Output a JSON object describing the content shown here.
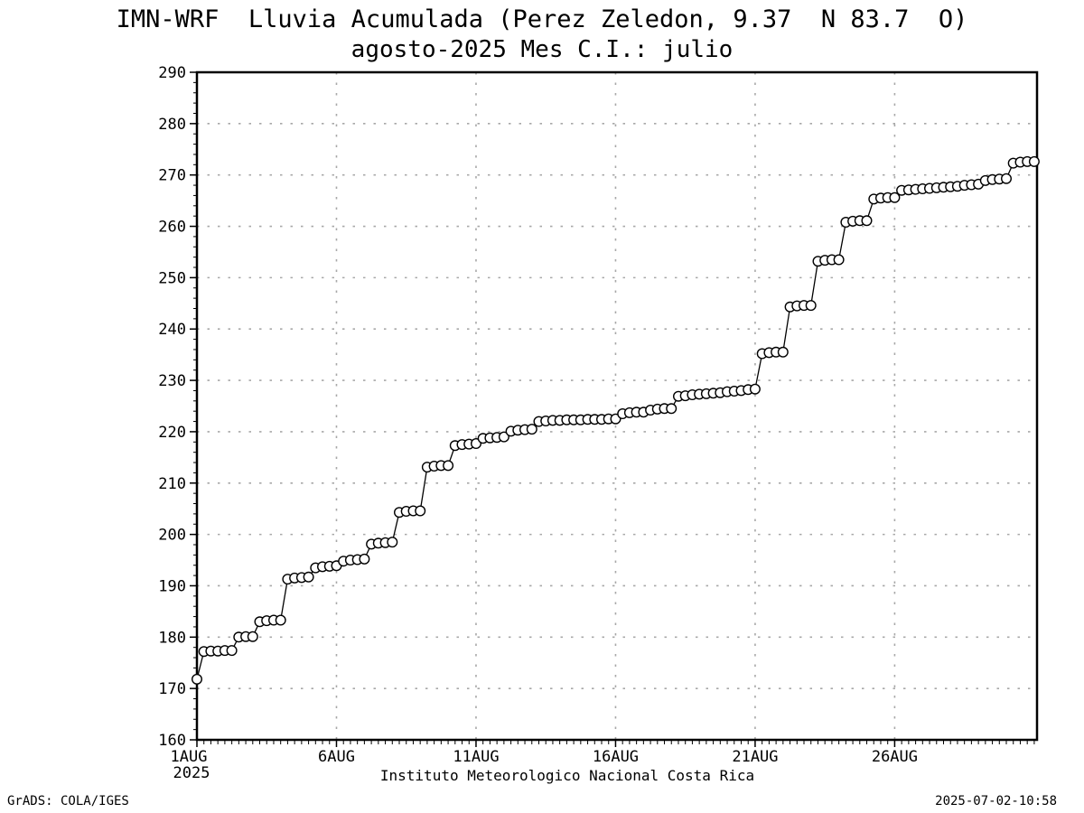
{
  "header": {
    "title_line1": "IMN-WRF  Lluvia Acumulada (Perez Zeledon, 9.37  N 83.7  O)",
    "title_line2": "agosto-2025 Mes C.I.: julio"
  },
  "footer": {
    "xaxis_title": "Instituto Meteorologico Nacional Costa Rica",
    "credit_left": "GrADS: COLA/IGES",
    "credit_right": "2025-07-02-10:58"
  },
  "colors": {
    "background": "#ffffff",
    "frame": "#000000",
    "gridline": "#a8a8a8",
    "line": "#000000",
    "marker_fill": "#ffffff",
    "marker_stroke": "#000000"
  },
  "chart_data": {
    "type": "line",
    "title": "IMN-WRF  Lluvia Acumulada (Perez Zeledon, 9.37  N 83.7  O)",
    "subtitle": "agosto-2025 Mes C.I.: julio",
    "xlabel": "Instituto Meteorologico Nacional Costa Rica",
    "ylabel": "",
    "xlim": [
      1.0,
      31.1
    ],
    "ylim": [
      160,
      290
    ],
    "y_tick_step": 10,
    "y_minor_step": 2,
    "x_minor_step": 0.25,
    "grid": "dotted",
    "legend": "none",
    "marker": "open-circle",
    "x_unit": "day of August 2025 (6-hourly)",
    "y_ticks": [
      160,
      170,
      180,
      190,
      200,
      210,
      220,
      230,
      240,
      250,
      260,
      270,
      280,
      290
    ],
    "x_ticks": [
      {
        "day": 1,
        "label": "1AUG",
        "sublabel": "2025"
      },
      {
        "day": 6,
        "label": "6AUG"
      },
      {
        "day": 11,
        "label": "11AUG"
      },
      {
        "day": 16,
        "label": "16AUG"
      },
      {
        "day": 21,
        "label": "21AUG"
      },
      {
        "day": 26,
        "label": "26AUG"
      }
    ],
    "series": [
      {
        "name": "Lluvia acumulada (mm)",
        "points": [
          [
            1.0,
            171.8
          ],
          [
            1.25,
            177.2
          ],
          [
            1.5,
            177.3
          ],
          [
            1.75,
            177.3
          ],
          [
            2.0,
            177.4
          ],
          [
            2.25,
            177.4
          ],
          [
            2.5,
            180.0
          ],
          [
            2.75,
            180.1
          ],
          [
            3.0,
            180.1
          ],
          [
            3.25,
            183.0
          ],
          [
            3.5,
            183.2
          ],
          [
            3.75,
            183.3
          ],
          [
            4.0,
            183.3
          ],
          [
            4.25,
            191.3
          ],
          [
            4.5,
            191.5
          ],
          [
            4.75,
            191.6
          ],
          [
            5.0,
            191.7
          ],
          [
            5.25,
            193.5
          ],
          [
            5.5,
            193.7
          ],
          [
            5.75,
            193.8
          ],
          [
            6.0,
            193.9
          ],
          [
            6.25,
            194.8
          ],
          [
            6.5,
            195.0
          ],
          [
            6.75,
            195.1
          ],
          [
            7.0,
            195.2
          ],
          [
            7.25,
            198.1
          ],
          [
            7.5,
            198.3
          ],
          [
            7.75,
            198.4
          ],
          [
            8.0,
            198.5
          ],
          [
            8.25,
            204.3
          ],
          [
            8.5,
            204.5
          ],
          [
            8.75,
            204.6
          ],
          [
            9.0,
            204.6
          ],
          [
            9.25,
            213.1
          ],
          [
            9.5,
            213.3
          ],
          [
            9.75,
            213.4
          ],
          [
            10.0,
            213.4
          ],
          [
            10.25,
            217.3
          ],
          [
            10.5,
            217.5
          ],
          [
            10.75,
            217.6
          ],
          [
            11.0,
            217.7
          ],
          [
            11.25,
            218.7
          ],
          [
            11.5,
            218.8
          ],
          [
            11.75,
            218.9
          ],
          [
            12.0,
            219.0
          ],
          [
            12.25,
            220.1
          ],
          [
            12.5,
            220.3
          ],
          [
            12.75,
            220.4
          ],
          [
            13.0,
            220.5
          ],
          [
            13.25,
            222.0
          ],
          [
            13.5,
            222.1
          ],
          [
            13.75,
            222.2
          ],
          [
            14.0,
            222.2
          ],
          [
            14.25,
            222.3
          ],
          [
            14.5,
            222.3
          ],
          [
            14.75,
            222.3
          ],
          [
            15.0,
            222.4
          ],
          [
            15.25,
            222.4
          ],
          [
            15.5,
            222.4
          ],
          [
            15.75,
            222.5
          ],
          [
            16.0,
            222.5
          ],
          [
            16.25,
            223.5
          ],
          [
            16.5,
            223.7
          ],
          [
            16.75,
            223.8
          ],
          [
            17.0,
            223.8
          ],
          [
            17.25,
            224.2
          ],
          [
            17.5,
            224.4
          ],
          [
            17.75,
            224.5
          ],
          [
            18.0,
            224.5
          ],
          [
            18.25,
            226.9
          ],
          [
            18.5,
            227.0
          ],
          [
            18.75,
            227.2
          ],
          [
            19.0,
            227.3
          ],
          [
            19.25,
            227.4
          ],
          [
            19.5,
            227.5
          ],
          [
            19.75,
            227.6
          ],
          [
            20.0,
            227.8
          ],
          [
            20.25,
            227.9
          ],
          [
            20.5,
            228.0
          ],
          [
            20.75,
            228.2
          ],
          [
            21.0,
            228.3
          ],
          [
            21.25,
            235.2
          ],
          [
            21.5,
            235.4
          ],
          [
            21.75,
            235.5
          ],
          [
            22.0,
            235.5
          ],
          [
            22.25,
            244.3
          ],
          [
            22.5,
            244.5
          ],
          [
            22.75,
            244.6
          ],
          [
            23.0,
            244.6
          ],
          [
            23.25,
            253.2
          ],
          [
            23.5,
            253.4
          ],
          [
            23.75,
            253.5
          ],
          [
            24.0,
            253.5
          ],
          [
            24.25,
            260.8
          ],
          [
            24.5,
            261.0
          ],
          [
            24.75,
            261.1
          ],
          [
            25.0,
            261.1
          ],
          [
            25.25,
            265.3
          ],
          [
            25.5,
            265.5
          ],
          [
            25.75,
            265.6
          ],
          [
            26.0,
            265.6
          ],
          [
            26.25,
            267.0
          ],
          [
            26.5,
            267.1
          ],
          [
            26.75,
            267.2
          ],
          [
            27.0,
            267.3
          ],
          [
            27.25,
            267.4
          ],
          [
            27.5,
            267.5
          ],
          [
            27.75,
            267.6
          ],
          [
            28.0,
            267.7
          ],
          [
            28.25,
            267.8
          ],
          [
            28.5,
            268.0
          ],
          [
            28.75,
            268.1
          ],
          [
            29.0,
            268.2
          ],
          [
            29.25,
            268.9
          ],
          [
            29.5,
            269.1
          ],
          [
            29.75,
            269.2
          ],
          [
            30.0,
            269.3
          ],
          [
            30.25,
            272.3
          ],
          [
            30.5,
            272.5
          ],
          [
            30.75,
            272.6
          ],
          [
            31.0,
            272.6
          ]
        ]
      }
    ]
  }
}
